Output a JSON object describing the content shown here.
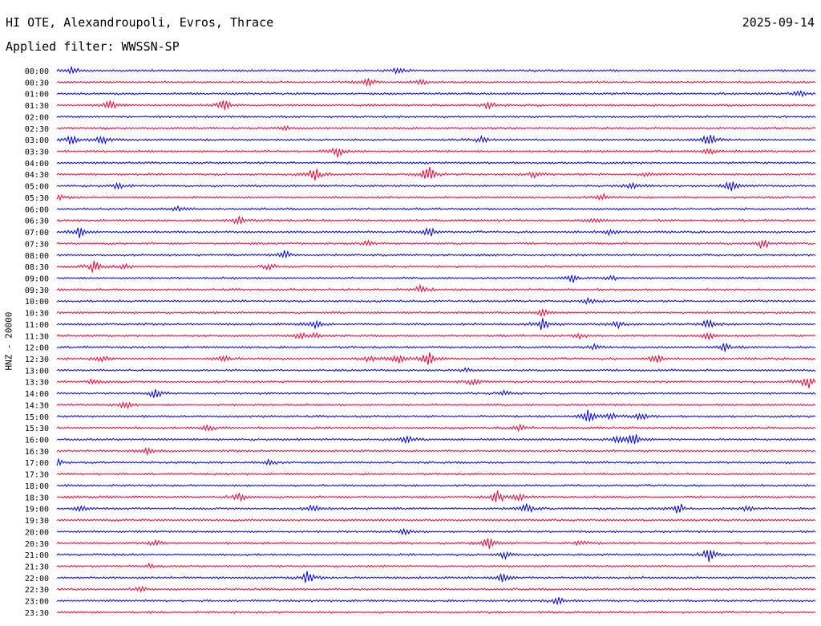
{
  "header": {
    "station": "HI OTE, Alexandroupoli, Evros, Thrace",
    "date": "2025-09-14",
    "filter": "Applied filter: WWSSN-SP"
  },
  "chart_data": {
    "type": "line",
    "title": "HI OTE, Alexandroupoli, Evros, Thrace",
    "ylabel": "HNZ - 20000",
    "colors": {
      "blue": "#0000dd",
      "red": "#ee0033"
    },
    "series_colors": "alternating blue/red starting with blue",
    "rows": [
      {
        "label": "00:00",
        "events": [
          [
            0.02,
            0.6
          ],
          [
            0.45,
            0.5
          ]
        ]
      },
      {
        "label": "00:30",
        "events": [
          [
            0.41,
            0.9
          ],
          [
            0.48,
            0.4
          ]
        ]
      },
      {
        "label": "01:00",
        "events": [
          [
            0.98,
            0.5
          ]
        ]
      },
      {
        "label": "01:30",
        "events": [
          [
            0.07,
            0.7
          ],
          [
            0.22,
            1.0
          ],
          [
            0.57,
            0.6
          ]
        ]
      },
      {
        "label": "02:00",
        "events": []
      },
      {
        "label": "02:30",
        "events": [
          [
            0.3,
            0.4
          ]
        ]
      },
      {
        "label": "03:00",
        "events": [
          [
            0.02,
            1.2
          ],
          [
            0.06,
            0.8
          ],
          [
            0.56,
            0.6
          ],
          [
            0.86,
            1.3
          ]
        ]
      },
      {
        "label": "03:30",
        "events": [
          [
            0.37,
            1.0
          ],
          [
            0.86,
            0.6
          ]
        ]
      },
      {
        "label": "04:00",
        "events": []
      },
      {
        "label": "04:30",
        "events": [
          [
            0.34,
            1.3
          ],
          [
            0.49,
            1.4
          ],
          [
            0.63,
            0.6
          ],
          [
            0.78,
            0.5
          ]
        ]
      },
      {
        "label": "05:00",
        "events": [
          [
            0.08,
            0.5
          ],
          [
            0.76,
            0.6
          ],
          [
            0.89,
            1.0
          ]
        ]
      },
      {
        "label": "05:30",
        "events": [
          [
            0.0,
            0.5
          ],
          [
            0.72,
            0.6
          ]
        ]
      },
      {
        "label": "06:00",
        "events": [
          [
            0.16,
            0.6
          ]
        ]
      },
      {
        "label": "06:30",
        "events": [
          [
            0.24,
            0.8
          ],
          [
            0.71,
            0.5
          ]
        ]
      },
      {
        "label": "07:00",
        "events": [
          [
            0.03,
            1.1
          ],
          [
            0.49,
            0.9
          ],
          [
            0.73,
            0.5
          ]
        ]
      },
      {
        "label": "07:30",
        "events": [
          [
            0.41,
            0.5
          ],
          [
            0.93,
            1.0
          ]
        ]
      },
      {
        "label": "08:00",
        "events": [
          [
            0.3,
            0.8
          ]
        ]
      },
      {
        "label": "08:30",
        "events": [
          [
            0.05,
            1.5
          ],
          [
            0.09,
            0.5
          ],
          [
            0.28,
            0.6
          ]
        ]
      },
      {
        "label": "09:00",
        "events": [
          [
            0.68,
            0.9
          ],
          [
            0.73,
            0.5
          ]
        ]
      },
      {
        "label": "09:30",
        "events": [
          [
            0.48,
            0.7
          ]
        ]
      },
      {
        "label": "10:00",
        "events": [
          [
            0.7,
            0.5
          ]
        ]
      },
      {
        "label": "10:30",
        "events": [
          [
            0.64,
            0.7
          ]
        ]
      },
      {
        "label": "11:00",
        "events": [
          [
            0.34,
            0.8
          ],
          [
            0.64,
            1.1
          ],
          [
            0.74,
            0.6
          ],
          [
            0.86,
            1.0
          ]
        ]
      },
      {
        "label": "11:30",
        "events": [
          [
            0.32,
            0.6
          ],
          [
            0.34,
            0.5
          ],
          [
            0.69,
            0.5
          ],
          [
            0.86,
            0.6
          ]
        ]
      },
      {
        "label": "12:00",
        "events": [
          [
            0.71,
            0.5
          ],
          [
            0.88,
            0.8
          ]
        ]
      },
      {
        "label": "12:30",
        "events": [
          [
            0.06,
            0.6
          ],
          [
            0.22,
            0.5
          ],
          [
            0.41,
            0.6
          ],
          [
            0.45,
            0.9
          ],
          [
            0.49,
            1.3
          ],
          [
            0.79,
            0.7
          ]
        ]
      },
      {
        "label": "13:00",
        "events": [
          [
            0.54,
            0.4
          ]
        ]
      },
      {
        "label": "13:30",
        "events": [
          [
            0.05,
            0.6
          ],
          [
            0.55,
            0.6
          ],
          [
            0.99,
            1.2
          ]
        ]
      },
      {
        "label": "14:00",
        "events": [
          [
            0.13,
            0.9
          ],
          [
            0.59,
            0.5
          ]
        ]
      },
      {
        "label": "14:30",
        "events": [
          [
            0.09,
            0.7
          ]
        ]
      },
      {
        "label": "15:00",
        "events": [
          [
            0.7,
            1.1
          ],
          [
            0.73,
            0.6
          ],
          [
            0.77,
            0.6
          ]
        ]
      },
      {
        "label": "15:30",
        "events": [
          [
            0.2,
            0.5
          ],
          [
            0.61,
            0.5
          ]
        ]
      },
      {
        "label": "16:00",
        "events": [
          [
            0.46,
            0.8
          ],
          [
            0.74,
            0.7
          ],
          [
            0.76,
            1.2
          ]
        ]
      },
      {
        "label": "16:30",
        "events": [
          [
            0.12,
            0.6
          ]
        ]
      },
      {
        "label": "17:00",
        "events": [
          [
            0.0,
            0.6
          ],
          [
            0.28,
            0.5
          ]
        ]
      },
      {
        "label": "17:30",
        "events": []
      },
      {
        "label": "18:00",
        "events": []
      },
      {
        "label": "18:30",
        "events": [
          [
            0.24,
            0.8
          ],
          [
            0.58,
            1.2
          ],
          [
            0.61,
            0.6
          ]
        ]
      },
      {
        "label": "19:00",
        "events": [
          [
            0.03,
            0.5
          ],
          [
            0.34,
            0.7
          ],
          [
            0.62,
            0.9
          ],
          [
            0.82,
            1.0
          ],
          [
            0.91,
            0.5
          ]
        ]
      },
      {
        "label": "19:30",
        "events": []
      },
      {
        "label": "20:00",
        "events": [
          [
            0.46,
            0.5
          ]
        ]
      },
      {
        "label": "20:30",
        "events": [
          [
            0.13,
            0.5
          ],
          [
            0.57,
            1.3
          ],
          [
            0.69,
            0.5
          ]
        ]
      },
      {
        "label": "21:00",
        "events": [
          [
            0.59,
            0.7
          ],
          [
            0.86,
            1.3
          ]
        ]
      },
      {
        "label": "21:30",
        "events": [
          [
            0.12,
            0.4
          ]
        ]
      },
      {
        "label": "22:00",
        "events": [
          [
            0.33,
            1.1
          ],
          [
            0.59,
            1.0
          ]
        ]
      },
      {
        "label": "22:30",
        "events": [
          [
            0.11,
            0.4
          ]
        ]
      },
      {
        "label": "23:00",
        "events": [
          [
            0.66,
            0.6
          ]
        ]
      },
      {
        "label": "23:30",
        "events": []
      }
    ]
  }
}
